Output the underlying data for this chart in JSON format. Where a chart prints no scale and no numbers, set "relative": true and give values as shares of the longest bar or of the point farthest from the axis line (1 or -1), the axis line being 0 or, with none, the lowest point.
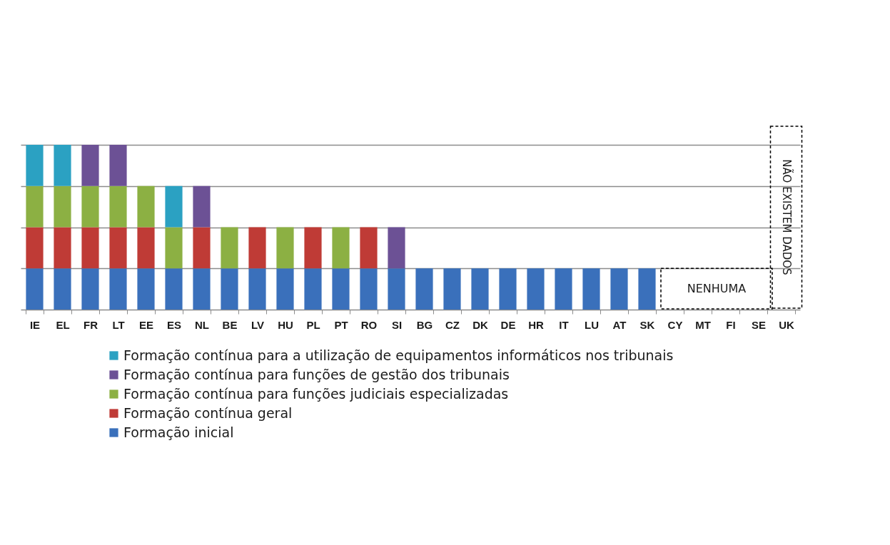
{
  "chart_data": {
    "type": "bar",
    "stacked": true,
    "relative": true,
    "grid": "y",
    "legend": "bottom",
    "categories": [
      "IE",
      "EL",
      "FR",
      "LT",
      "EE",
      "ES",
      "NL",
      "BE",
      "LV",
      "HU",
      "PL",
      "PT",
      "RO",
      "SI",
      "BG",
      "CZ",
      "DK",
      "DE",
      "HR",
      "IT",
      "LU",
      "AT",
      "SK",
      "CY",
      "MT",
      "FI",
      "SE",
      "UK"
    ],
    "series": [
      {
        "name": "Formação inicial",
        "color": "#3a70bb",
        "values": [
          0.25,
          0.25,
          0.25,
          0.25,
          0.25,
          0.25,
          0.25,
          0.25,
          0.25,
          0.25,
          0.25,
          0.25,
          0.25,
          0.25,
          0.25,
          0.25,
          0.25,
          0.25,
          0.25,
          0.25,
          0.25,
          0.25,
          0.25,
          null,
          null,
          null,
          null,
          null
        ]
      },
      {
        "name": "Formação contínua geral",
        "color": "#bf3b36",
        "values": [
          0.25,
          0.25,
          0.25,
          0.25,
          0.25,
          null,
          0.25,
          null,
          0.25,
          null,
          0.25,
          null,
          0.25,
          null,
          null,
          null,
          null,
          null,
          null,
          null,
          null,
          null,
          null,
          null,
          null,
          null,
          null,
          null
        ]
      },
      {
        "name": "Formação contínua para funções judiciais especializadas",
        "color": "#8cb043",
        "values": [
          0.25,
          0.25,
          0.25,
          0.25,
          0.25,
          0.25,
          null,
          0.25,
          null,
          0.25,
          null,
          0.25,
          null,
          null,
          null,
          null,
          null,
          null,
          null,
          null,
          null,
          null,
          null,
          null,
          null,
          null,
          null,
          null
        ]
      },
      {
        "name": "Formação contínua para funções de gestão dos tribunais",
        "color": "#6c5195",
        "values": [
          null,
          null,
          0.25,
          0.25,
          null,
          null,
          0.25,
          null,
          null,
          null,
          null,
          null,
          null,
          0.25,
          null,
          null,
          null,
          null,
          null,
          null,
          null,
          null,
          null,
          null,
          null,
          null,
          null,
          null
        ]
      },
      {
        "name": "Formação contínua para a utilização de equipamentos informáticos nos tribunais",
        "color": "#2ba1c2",
        "values": [
          0.25,
          0.25,
          null,
          null,
          null,
          0.25,
          null,
          null,
          null,
          null,
          null,
          null,
          null,
          null,
          null,
          null,
          null,
          null,
          null,
          null,
          null,
          null,
          null,
          null,
          null,
          null,
          null,
          null
        ]
      }
    ],
    "annotations": [
      "NENHUMA",
      "NÃO EXISTEM DADOS"
    ]
  }
}
